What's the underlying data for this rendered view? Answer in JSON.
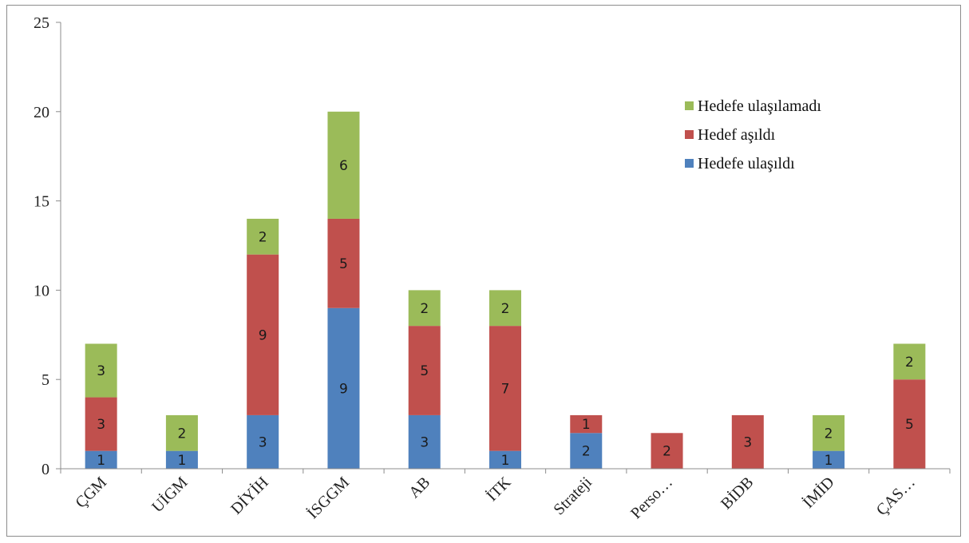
{
  "chart_data": {
    "type": "bar",
    "stacked": true,
    "title": "",
    "xlabel": "",
    "ylabel": "",
    "ylim": [
      0,
      25
    ],
    "yticks": [
      0,
      5,
      10,
      15,
      20,
      25
    ],
    "grid": false,
    "legend_position": "top-right",
    "categories": [
      "ÇGM",
      "UİGM",
      "DİYİH",
      "İSGGM",
      "AB",
      "İTK",
      "Strateji",
      "Perso…",
      "BİDB",
      "İMİD",
      "ÇAS…"
    ],
    "series": [
      {
        "name": "Hedefe ulaşıldı",
        "color": "#4f81bd",
        "values": [
          1,
          1,
          3,
          9,
          3,
          1,
          2,
          0,
          0,
          1,
          0
        ]
      },
      {
        "name": "Hedef aşıldı",
        "color": "#c0504d",
        "values": [
          3,
          0,
          9,
          5,
          5,
          7,
          1,
          2,
          3,
          0,
          5
        ]
      },
      {
        "name": "Hedefe ulaşılamadı",
        "color": "#9bbb59",
        "values": [
          3,
          2,
          2,
          6,
          2,
          2,
          0,
          0,
          0,
          2,
          2
        ]
      }
    ],
    "legend_order": [
      "Hedefe ulaşılamadı",
      "Hedef aşıldı",
      "Hedefe ulaşıldı"
    ]
  }
}
